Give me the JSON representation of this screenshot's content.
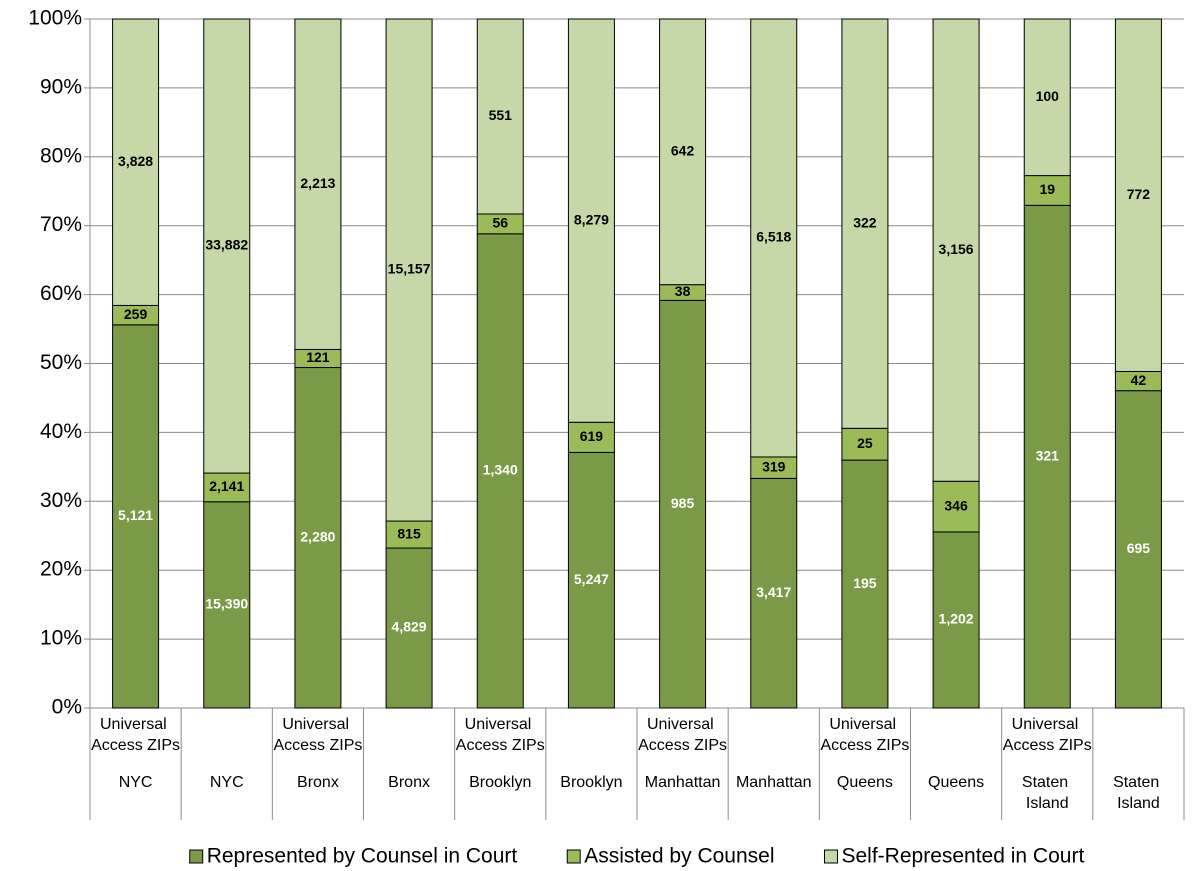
{
  "chart_data": {
    "type": "bar",
    "stacking": "percent",
    "category_groups": [
      "Universal Access ZIPs",
      null,
      "Universal Access ZIPs",
      null,
      "Universal Access ZIPs",
      null,
      "Universal Access ZIPs",
      null,
      "Universal Access ZIPs",
      null,
      "Universal Access ZIPs",
      null
    ],
    "categories": [
      "NYC",
      "NYC",
      "Bronx",
      "Bronx",
      "Brooklyn",
      "Brooklyn",
      "Manhattan",
      "Manhattan",
      "Queens",
      "Queens",
      "Staten Island",
      "Staten Island"
    ],
    "series": [
      {
        "name": "Represented by Counsel in Court",
        "color": "#7a9a48",
        "values": [
          5121,
          15390,
          2280,
          4829,
          1340,
          5247,
          985,
          3417,
          195,
          1202,
          321,
          695
        ],
        "value_labels": [
          "5,121",
          "15,390",
          "2,280",
          "4,829",
          "1,340",
          "5,247",
          "985",
          "3,417",
          "195",
          "1,202",
          "321",
          "695"
        ]
      },
      {
        "name": "Assisted by Counsel",
        "color": "#9bbb59",
        "values": [
          259,
          2141,
          121,
          815,
          56,
          619,
          38,
          319,
          25,
          346,
          19,
          42
        ],
        "value_labels": [
          "259",
          "2,141",
          "121",
          "815",
          "56",
          "619",
          "38",
          "319",
          "25",
          "346",
          "19",
          "42"
        ]
      },
      {
        "name": "Self-Represented in Court",
        "color": "#c6d8a8",
        "values": [
          3828,
          33882,
          2213,
          15157,
          551,
          8279,
          642,
          6518,
          322,
          3156,
          100,
          772
        ],
        "value_labels": [
          "3,828",
          "33,882",
          "2,213",
          "15,157",
          "551",
          "8,279",
          "642",
          "6,518",
          "322",
          "3,156",
          "100",
          "772"
        ]
      }
    ],
    "ylim": [
      0,
      100
    ],
    "yticks": [
      {
        "value": 0,
        "label": "0%"
      },
      {
        "value": 10,
        "label": "10%"
      },
      {
        "value": 20,
        "label": "20%"
      },
      {
        "value": 30,
        "label": "30%"
      },
      {
        "value": 40,
        "label": "40%"
      },
      {
        "value": 50,
        "label": "50%"
      },
      {
        "value": 60,
        "label": "60%"
      },
      {
        "value": 70,
        "label": "70%"
      },
      {
        "value": 80,
        "label": "80%"
      },
      {
        "value": 90,
        "label": "90%"
      },
      {
        "value": 100,
        "label": "100%"
      }
    ],
    "grid": true,
    "legend": "bottom",
    "label_colors": [
      "#ffffff",
      "#000000",
      "#000000"
    ]
  }
}
